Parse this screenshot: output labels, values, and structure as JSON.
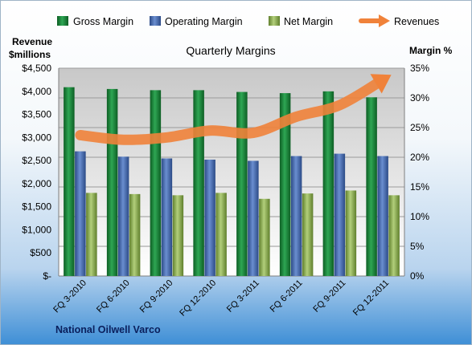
{
  "chart_data": {
    "type": "bar",
    "title": "Quarterly Margins",
    "company": "National Oilwell Varco",
    "categories": [
      "FQ 3-2010",
      "FQ 6-2010",
      "FQ 9-2010",
      "FQ 12-2010",
      "FQ 3-2011",
      "FQ 6-2011",
      "FQ 9-2011",
      "FQ 12-2011"
    ],
    "series": [
      {
        "name": "Gross Margin",
        "type": "bar",
        "axis": "right",
        "color": "#1f8a3c",
        "values": [
          31.8,
          31.5,
          31.3,
          31.3,
          31.0,
          30.8,
          31.1,
          30.1
        ]
      },
      {
        "name": "Operating Margin",
        "type": "bar",
        "axis": "right",
        "color": "#4a70b4",
        "values": [
          21.0,
          20.1,
          19.8,
          19.6,
          19.4,
          20.2,
          20.6,
          20.2
        ]
      },
      {
        "name": "Net Margin",
        "type": "bar",
        "axis": "right",
        "color": "#8fb257",
        "values": [
          14.0,
          13.8,
          13.6,
          14.0,
          13.0,
          13.9,
          14.4,
          13.6
        ]
      },
      {
        "name": "Revenues",
        "type": "arrow",
        "axis": "left",
        "color": "#f0823a",
        "values": [
          3050,
          2950,
          3000,
          3150,
          3100,
          3450,
          3700,
          4250
        ]
      }
    ],
    "left_axis": {
      "label_line1": "Revenue",
      "label_line2": "$millions",
      "ylim": [
        0,
        4500
      ],
      "ticks": [
        "$-",
        "$500",
        "$1,000",
        "$1,500",
        "$2,000",
        "$2,500",
        "$3,000",
        "$3,500",
        "$4,000",
        "$4,500"
      ]
    },
    "right_axis": {
      "label": "Margin %",
      "ylim": [
        0,
        35
      ],
      "ticks": [
        "0%",
        "5%",
        "10%",
        "15%",
        "20%",
        "25%",
        "30%",
        "35%"
      ]
    },
    "legend_position": "top",
    "grid": true
  }
}
